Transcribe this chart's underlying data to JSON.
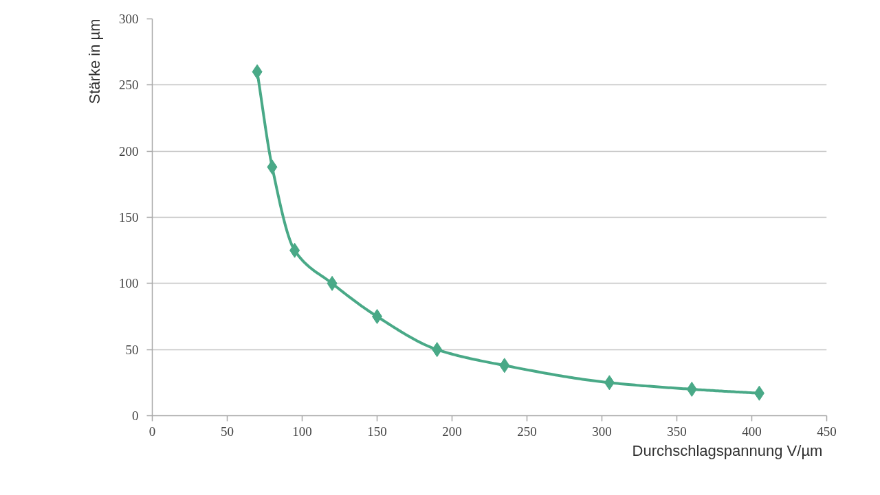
{
  "chart_data": {
    "type": "line",
    "xlabel": "Durchschlagspannung  V/µm",
    "ylabel": "Stärke in µm",
    "x": [
      70,
      80,
      95,
      120,
      150,
      190,
      235,
      305,
      360,
      405
    ],
    "values": [
      260,
      188,
      125,
      100,
      75,
      50,
      38,
      25,
      20,
      17
    ],
    "color": "#49a987",
    "xlim": [
      0,
      450
    ],
    "xticks": [
      0,
      50,
      100,
      150,
      200,
      250,
      300,
      350,
      400,
      450
    ],
    "ylim": [
      0,
      300
    ],
    "yticks": [
      0,
      50,
      100,
      150,
      200,
      250,
      300
    ],
    "grid": "y",
    "marker": "diamond",
    "line_style": "solid"
  }
}
